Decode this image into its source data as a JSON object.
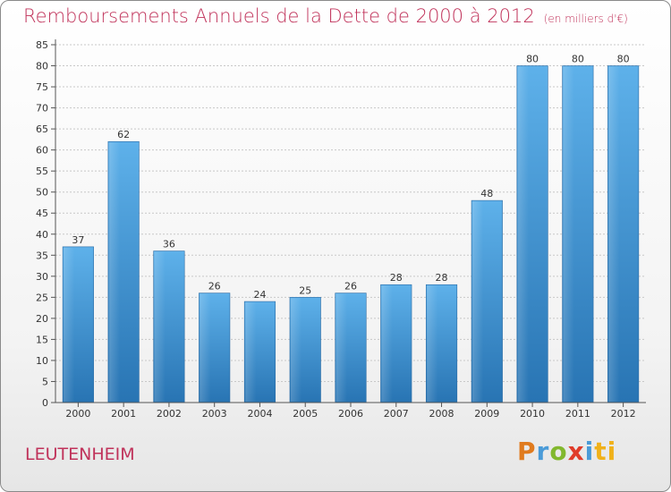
{
  "header": {
    "title": "Remboursements Annuels de la Dette de 2000 à 2012",
    "unit": "(en milliers d'€)"
  },
  "footer": {
    "commune": "LEUTENHEIM",
    "logo_letters": [
      "P",
      "r",
      "o",
      "x",
      "i",
      "ti"
    ]
  },
  "chart_data": {
    "type": "bar",
    "title": "Remboursements Annuels de la Dette de 2000 à 2012",
    "ylabel": "(en milliers d'€)",
    "xlabel": "",
    "categories": [
      "2000",
      "2001",
      "2002",
      "2003",
      "2004",
      "2005",
      "2006",
      "2007",
      "2008",
      "2009",
      "2010",
      "2011",
      "2012"
    ],
    "values": [
      37,
      62,
      36,
      26,
      24,
      25,
      26,
      28,
      28,
      48,
      80,
      80,
      80
    ],
    "ylim": [
      0,
      85
    ],
    "yticks": [
      0,
      5,
      10,
      15,
      20,
      25,
      30,
      35,
      40,
      45,
      50,
      55,
      60,
      65,
      70,
      75,
      80,
      85
    ],
    "grid": true,
    "colors": {
      "bar_light": "#5aaee8",
      "bar_dark": "#2a78b8",
      "accent": "#c0325a"
    }
  }
}
